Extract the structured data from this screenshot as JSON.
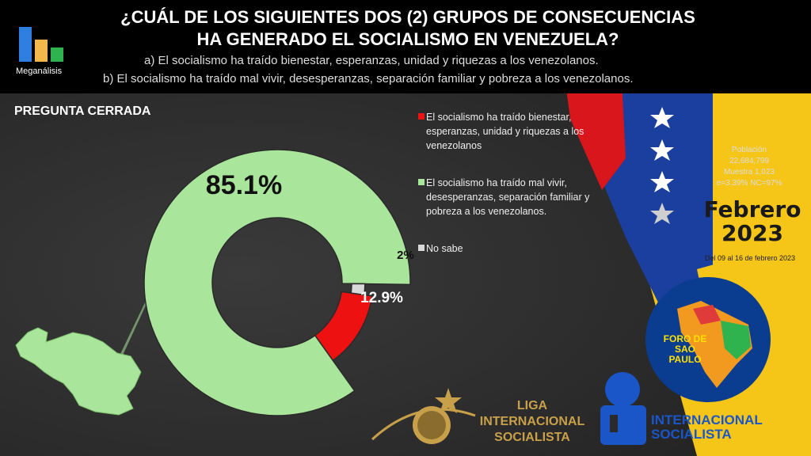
{
  "brand": {
    "name": "Meganálisis",
    "colors": [
      "#2f7fe0",
      "#f2b84b",
      "#2fb34e"
    ]
  },
  "header": {
    "title_line1": "¿CUÁL DE LOS SIGUIENTES DOS (2) GRUPOS DE CONSECUENCIAS",
    "title_line2": "HA GENERADO EL SOCIALISMO EN VENEZUELA?",
    "option_a": "a)   El socialismo ha traído bienestar, esperanzas, unidad y riquezas a los venezolanos.",
    "option_b": "b) El socialismo ha traído mal vivir, desesperanzas, separación familiar y pobreza a los venezolanos."
  },
  "subtitle": "PREGUNTA  CERRADA",
  "chart_data": {
    "type": "pie",
    "donut": true,
    "categories": [
      "El socialismo ha traído bienestar, esperanzas, unidad y riquezas a los venezolanos",
      "El socialismo ha traído mal vivir, desesperanzas, separación familiar y pobreza a los venezolanos.",
      "No sabe"
    ],
    "values": [
      12.9,
      85.1,
      2
    ],
    "labels": [
      "12.9%",
      "85.1%",
      "2%"
    ],
    "colors": [
      "#ee1111",
      "#a9e59a",
      "#d9d9d9"
    ],
    "legend_position": "right"
  },
  "stats": {
    "poblacion_label": "Población",
    "poblacion": "22,684,799",
    "muestra": "Muestra 1,023",
    "error": "e=3.39%  NC=97%"
  },
  "date": {
    "month": "Febrero",
    "year": "2023",
    "range": "Del 09 al 16 de febrero 2023"
  },
  "logos": {
    "foro_line1": "FORO DE",
    "foro_line2": "SAO",
    "foro_line3": "PAULO",
    "liga_line1": "LIGA INTERNACIONAL",
    "liga_line2": "SOCIALISTA",
    "is_line1": "INTERNACIONAL",
    "is_line2": "SOCIALISTA"
  }
}
